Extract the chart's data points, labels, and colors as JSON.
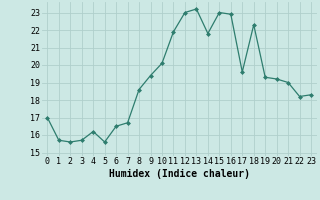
{
  "x": [
    0,
    1,
    2,
    3,
    4,
    5,
    6,
    7,
    8,
    9,
    10,
    11,
    12,
    13,
    14,
    15,
    16,
    17,
    18,
    19,
    20,
    21,
    22,
    23
  ],
  "y": [
    17.0,
    15.7,
    15.6,
    15.7,
    16.2,
    15.6,
    16.5,
    16.7,
    18.6,
    19.4,
    20.1,
    21.9,
    23.0,
    23.2,
    21.8,
    23.0,
    22.9,
    19.6,
    22.3,
    19.3,
    19.2,
    19.0,
    18.2,
    18.3
  ],
  "line_color": "#2e7d6e",
  "marker": "D",
  "marker_size": 2,
  "bg_color": "#cce8e4",
  "grid_color": "#b0cfcc",
  "xlabel": "Humidex (Indice chaleur)",
  "xlim": [
    -0.5,
    23.5
  ],
  "ylim": [
    14.8,
    23.6
  ],
  "yticks": [
    15,
    16,
    17,
    18,
    19,
    20,
    21,
    22,
    23
  ],
  "xticks": [
    0,
    1,
    2,
    3,
    4,
    5,
    6,
    7,
    8,
    9,
    10,
    11,
    12,
    13,
    14,
    15,
    16,
    17,
    18,
    19,
    20,
    21,
    22,
    23
  ],
  "label_fontsize": 7,
  "tick_fontsize": 6
}
